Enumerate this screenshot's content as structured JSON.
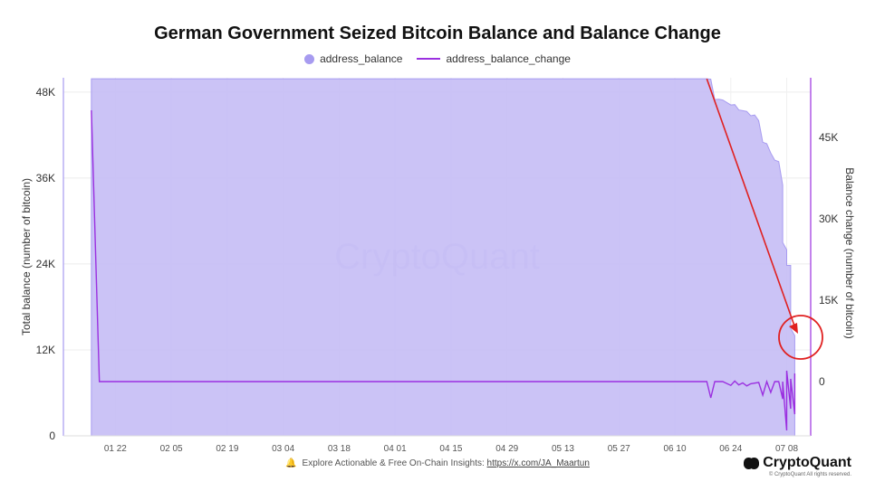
{
  "chart_data": {
    "type": "area",
    "title": "German Government Seized Bitcoin Balance and Balance Change",
    "legend": [
      "address_balance",
      "address_balance_change"
    ],
    "legend_placement": "top-center",
    "colors": {
      "balance": "#a79bf0",
      "balance_fill": "#c5bdf5",
      "change": "#9b30e0",
      "annotation": "#e02020"
    },
    "left_axis": {
      "label": "Total balance (number of bitcoin)",
      "ticks": [
        "0",
        "12K",
        "24K",
        "36K",
        "48K"
      ],
      "range": [
        0,
        50000
      ]
    },
    "right_axis": {
      "label": "Balance change (number of bitcoin)",
      "ticks": [
        "0",
        "15K",
        "30K",
        "45K"
      ],
      "range": [
        -10000,
        56000
      ]
    },
    "x_ticks": [
      "01 22",
      "02 05",
      "02 19",
      "03 04",
      "03 18",
      "04 01",
      "04 15",
      "04 29",
      "05 13",
      "05 27",
      "06 10",
      "06 24",
      "07 08"
    ],
    "grid": true,
    "watermark": "CryptoQuant",
    "series": [
      {
        "name": "address_balance",
        "axis": "left",
        "points": [
          [
            "2024-01-16",
            49858
          ],
          [
            "2024-06-18",
            49858
          ],
          [
            "2024-06-19",
            49800
          ],
          [
            "2024-06-20",
            46960
          ],
          [
            "2024-06-21",
            47000
          ],
          [
            "2024-06-22",
            46900
          ],
          [
            "2024-06-24",
            46200
          ],
          [
            "2024-06-25",
            46250
          ],
          [
            "2024-06-26",
            45500
          ],
          [
            "2024-06-27",
            45400
          ],
          [
            "2024-06-28",
            45300
          ],
          [
            "2024-06-29",
            44700
          ],
          [
            "2024-06-30",
            44800
          ],
          [
            "2024-07-01",
            44000
          ],
          [
            "2024-07-02",
            41000
          ],
          [
            "2024-07-03",
            40800
          ],
          [
            "2024-07-04",
            39500
          ],
          [
            "2024-07-05",
            38500
          ],
          [
            "2024-07-06",
            38300
          ],
          [
            "2024-07-07",
            35000
          ],
          [
            "2024-07-07",
            27000
          ],
          [
            "2024-07-08",
            26000
          ],
          [
            "2024-07-08",
            23800
          ],
          [
            "2024-07-09",
            23800
          ],
          [
            "2024-07-09",
            15000
          ],
          [
            "2024-07-10",
            14000
          ],
          [
            "2024-07-10",
            13200
          ]
        ]
      },
      {
        "name": "address_balance_change",
        "axis": "right",
        "points": [
          [
            "2024-01-16",
            50000
          ],
          [
            "2024-01-18",
            0
          ],
          [
            "2024-06-18",
            0
          ],
          [
            "2024-06-19",
            -3000
          ],
          [
            "2024-06-20",
            0
          ],
          [
            "2024-06-22",
            0
          ],
          [
            "2024-06-24",
            -700
          ],
          [
            "2024-06-25",
            100
          ],
          [
            "2024-06-26",
            -600
          ],
          [
            "2024-06-27",
            -250
          ],
          [
            "2024-06-28",
            -800
          ],
          [
            "2024-06-29",
            -400
          ],
          [
            "2024-07-01",
            -150
          ],
          [
            "2024-07-02",
            -2500
          ],
          [
            "2024-07-03",
            0
          ],
          [
            "2024-07-04",
            -2000
          ],
          [
            "2024-07-05",
            0
          ],
          [
            "2024-07-06",
            0
          ],
          [
            "2024-07-07",
            -3200
          ],
          [
            "2024-07-07",
            0
          ],
          [
            "2024-07-08",
            -9000
          ],
          [
            "2024-07-08",
            2000
          ],
          [
            "2024-07-09",
            -5000
          ],
          [
            "2024-07-09",
            500
          ],
          [
            "2024-07-10",
            -6000
          ],
          [
            "2024-07-10",
            1500
          ]
        ]
      }
    ]
  },
  "footer": {
    "text": "Explore Actionable & Free On-Chain Insights:",
    "link": "https://x.com/JA_Maartun"
  },
  "brand": {
    "name": "CryptoQuant",
    "copyright": "© CryptoQuant All rights reserved."
  }
}
